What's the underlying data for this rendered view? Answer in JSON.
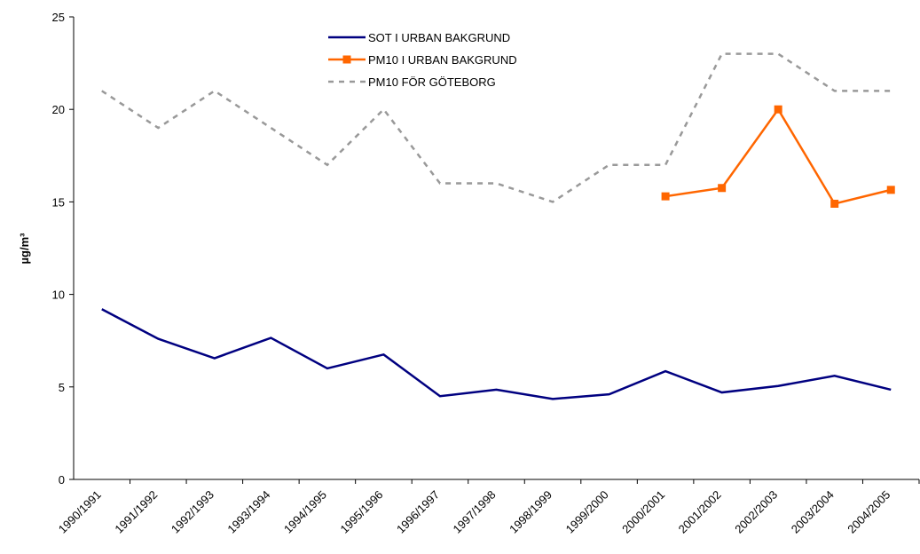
{
  "chart_data": {
    "type": "line",
    "y_label": "µg/m³",
    "categories": [
      "1990/1991",
      "1991/1992",
      "1992/1993",
      "1993/1994",
      "1994/1995",
      "1995/1996",
      "1996/1997",
      "1997/1998",
      "1998/1999",
      "1999/2000",
      "2000/2001",
      "2001/2002",
      "2002/2003",
      "2003/2004",
      "2004/2005"
    ],
    "series": [
      {
        "name": "SOT I URBAN BAKGRUND",
        "color": "#000080",
        "line_style": "solid",
        "marker": "none",
        "values": [
          9.2,
          7.6,
          6.55,
          7.65,
          6.0,
          6.75,
          4.5,
          4.85,
          4.35,
          4.6,
          5.85,
          4.7,
          5.05,
          5.6,
          4.85
        ]
      },
      {
        "name": "PM10 I URBAN BAKGRUND",
        "color": "#ff6600",
        "line_style": "solid",
        "marker": "square",
        "values": [
          null,
          null,
          null,
          null,
          null,
          null,
          null,
          null,
          null,
          null,
          15.3,
          15.75,
          20,
          14.9,
          15.65
        ]
      },
      {
        "name": "PM10 FÖR GÖTEBORG",
        "color": "#999999",
        "line_style": "dashed",
        "marker": "none",
        "values": [
          21,
          19,
          21,
          19,
          17,
          20,
          16,
          16,
          15,
          17,
          17,
          23,
          23,
          21,
          21
        ]
      }
    ],
    "ylim": [
      0,
      25
    ],
    "yticks": [
      0,
      5,
      10,
      15,
      20,
      25
    ],
    "grid": false,
    "legend": "top"
  }
}
